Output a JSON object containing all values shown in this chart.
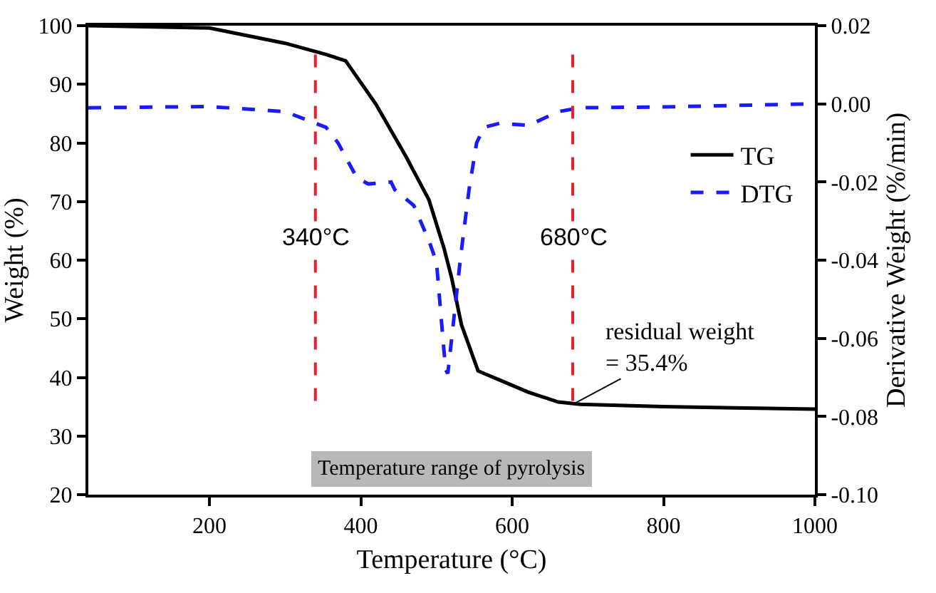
{
  "chart_data": {
    "type": "line",
    "xlabel": "Temperature (°C)",
    "ylabel": "Weight (%)",
    "y2label": "Derivative Weight (%/min)",
    "xlim": [
      40,
      1000
    ],
    "xticks": [
      200,
      400,
      600,
      800,
      1000
    ],
    "ylim": [
      20,
      100
    ],
    "yticks": [
      20,
      30,
      40,
      50,
      60,
      70,
      80,
      90,
      100
    ],
    "y2lim": [
      -0.1,
      0.02
    ],
    "y2ticks": [
      {
        "value": -0.1,
        "label": "-0.10"
      },
      {
        "value": -0.08,
        "label": "-0.08"
      },
      {
        "value": -0.06,
        "label": "-0.06"
      },
      {
        "value": -0.04,
        "label": "-0.04"
      },
      {
        "value": -0.02,
        "label": "-0.02"
      },
      {
        "value": 0,
        "label": "0.00"
      },
      {
        "value": 0.02,
        "label": "0.02"
      }
    ],
    "series": [
      {
        "name": "TG",
        "color": "#000000",
        "line_style": "solid",
        "x": [
          40,
          200,
          300,
          354,
          380,
          420,
          460,
          490,
          510,
          520,
          533,
          555,
          590,
          621,
          661,
          690,
          800,
          1000
        ],
        "values": [
          100,
          99.6,
          97,
          95.1,
          94,
          86.6,
          77.6,
          70.3,
          62,
          57,
          49,
          41.1,
          39.2,
          37.5,
          35.8,
          35.4,
          35,
          34.6
        ]
      },
      {
        "name": "DTG",
        "color": "#1a1aff",
        "line_style": "dashed",
        "axis": "y2",
        "x": [
          40,
          200,
          300,
          354,
          370,
          395,
          410,
          440,
          445,
          470,
          490,
          500,
          512,
          515,
          532,
          543,
          553,
          563,
          583,
          622,
          661,
          690,
          800,
          1000
        ],
        "values": [
          -0.001,
          -0.0007,
          -0.002,
          -0.006,
          -0.01,
          -0.019,
          -0.0205,
          -0.02,
          -0.022,
          -0.026,
          -0.035,
          -0.0405,
          -0.068,
          -0.069,
          -0.039,
          -0.022,
          -0.01,
          -0.006,
          -0.005,
          -0.0055,
          -0.002,
          -0.001,
          -0.0008,
          0
        ]
      }
    ],
    "ref_lines": [
      {
        "axis": "x",
        "value": 340,
        "label": "340°C",
        "color": "#e8202a",
        "line_style": "dashed"
      },
      {
        "axis": "x",
        "value": 680,
        "label": "680°C",
        "color": "#e8202a",
        "line_style": "dashed"
      }
    ],
    "annotations": [
      {
        "text": "residual weight\n= 35.4%",
        "x": 680,
        "y": 35.4
      },
      "Temperature range of pyrolysis"
    ],
    "legend": "top right",
    "marker": "none",
    "grid": false
  }
}
